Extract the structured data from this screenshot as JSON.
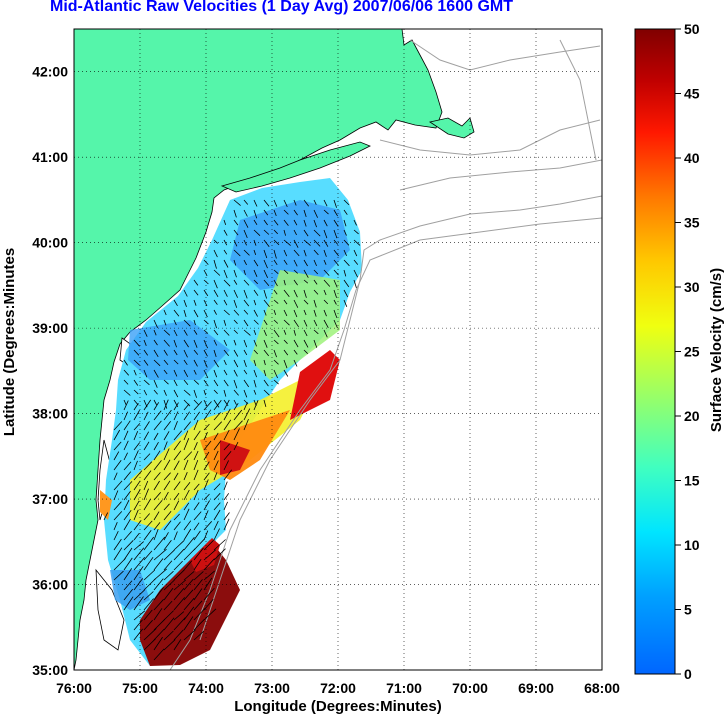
{
  "title": "Mid-Atlantic Raw Velocities (1 Day Avg) 2007/06/06 1600 GMT",
  "axes": {
    "xlabel": "Longitude (Degrees:Minutes)",
    "ylabel": "Latitude (Degrees:Minutes",
    "xticks": [
      "76:00",
      "75:00",
      "74:00",
      "73:00",
      "72:00",
      "71:00",
      "70:00",
      "69:00",
      "68:00"
    ],
    "yticks": [
      "42:00",
      "41:00",
      "40:00",
      "39:00",
      "38:00",
      "37:00",
      "36:00",
      "35:00"
    ],
    "xlim": [
      -76,
      -68
    ],
    "ylim": [
      35,
      42.5
    ],
    "grid": "dotted"
  },
  "colorbar": {
    "label": "Surface Velocity (cm/s)",
    "range": [
      0,
      50
    ],
    "ticks": [
      "50",
      "45",
      "40",
      "35",
      "30",
      "25",
      "20",
      "15",
      "10",
      "5",
      "0"
    ],
    "colormap": "jet"
  },
  "colors": {
    "land": "#55f5aa",
    "title": "#0000ff",
    "contour": "#a0a0a0"
  }
}
